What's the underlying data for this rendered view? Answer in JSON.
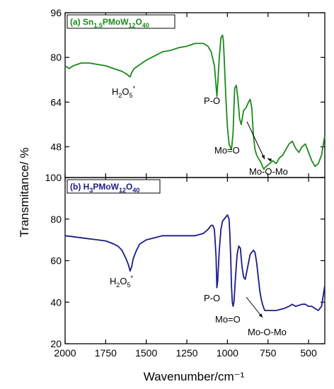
{
  "chart_data": [
    {
      "type": "line",
      "panel": "a",
      "legend_parts": [
        {
          "t": "(a) Sn",
          "sub": false
        },
        {
          "t": "1.5",
          "sub": true
        },
        {
          "t": "PMoW",
          "sub": false
        },
        {
          "t": "12",
          "sub": true
        },
        {
          "t": "O",
          "sub": false
        },
        {
          "t": "40",
          "sub": true
        }
      ],
      "color": "#1a8a1a",
      "legend_placement": "top-left",
      "xlim": [
        2000,
        400
      ],
      "ylim": [
        37,
        96
      ],
      "yticks": [
        "48",
        "64",
        "80",
        "96"
      ],
      "ytick_values": [
        48,
        64,
        80,
        96
      ],
      "series": [
        {
          "x": [
            2000,
            1975,
            1950,
            1900,
            1850,
            1800,
            1750,
            1700,
            1650,
            1620,
            1600,
            1590,
            1575,
            1550,
            1500,
            1450,
            1400,
            1350,
            1300,
            1250,
            1200,
            1150,
            1120,
            1100,
            1080,
            1070,
            1065,
            1060,
            1050,
            1040,
            1030,
            1025,
            1020,
            1010,
            1000,
            990,
            975,
            965,
            960,
            955,
            945,
            935,
            925,
            915,
            900,
            885,
            870,
            860,
            850,
            840,
            830,
            820,
            800,
            790,
            780,
            775,
            770,
            760,
            750,
            740,
            730,
            720,
            700,
            680,
            660,
            640,
            620,
            600,
            580,
            560,
            540,
            520,
            500,
            480,
            460,
            440,
            420,
            400
          ],
          "y": [
            77,
            76,
            77,
            78,
            78,
            77.5,
            77,
            76,
            75,
            74,
            73,
            74.5,
            76,
            77,
            79,
            80.5,
            82,
            82.5,
            83.5,
            84,
            85,
            85,
            84,
            82,
            77,
            70,
            66,
            70,
            80,
            87,
            88,
            86,
            80,
            66,
            55,
            49,
            47,
            53,
            62,
            69,
            70,
            65,
            58,
            56,
            61,
            62,
            64,
            65,
            62,
            52,
            47,
            45,
            43,
            42,
            40.5,
            40,
            40.5,
            41,
            41.5,
            42,
            42.5,
            43,
            42,
            44,
            45,
            47,
            49,
            50,
            47.5,
            46,
            48,
            49,
            46,
            43,
            41,
            42,
            45,
            52
          ]
        }
      ],
      "annotations": [
        {
          "parts": [
            {
              "t": "H",
              "sub": false
            },
            {
              "t": "2",
              "sub": true
            },
            {
              "t": "O",
              "sub": false
            },
            {
              "t": "5",
              "sub": true
            },
            {
              "t": "*",
              "sub": false,
              "sup": true
            }
          ]
        },
        {
          "parts": [
            {
              "t": "P-O",
              "sub": false
            }
          ]
        },
        {
          "parts": [
            {
              "t": "Mo=O",
              "sub": false
            }
          ]
        },
        {
          "parts": [
            {
              "t": "Mo-O-Mo",
              "sub": false
            }
          ]
        }
      ]
    },
    {
      "type": "line",
      "panel": "b",
      "legend_parts": [
        {
          "t": "(b) H",
          "sub": false
        },
        {
          "t": "3",
          "sub": true
        },
        {
          "t": "PMoW",
          "sub": false
        },
        {
          "t": "12",
          "sub": true
        },
        {
          "t": "O",
          "sub": false
        },
        {
          "t": "40",
          "sub": true
        }
      ],
      "color": "#1a1a8c",
      "legend_placement": "top-left",
      "xlim": [
        2000,
        400
      ],
      "ylim": [
        20,
        100
      ],
      "yticks": [
        "20",
        "40",
        "60",
        "80",
        "100"
      ],
      "ytick_values": [
        20,
        40,
        60,
        80,
        100
      ],
      "xticks": [
        "2000",
        "1750",
        "1500",
        "1250",
        "1000",
        "750",
        "500"
      ],
      "xtick_values": [
        2000,
        1750,
        1500,
        1250,
        1000,
        750,
        500
      ],
      "series": [
        {
          "x": [
            2000,
            1950,
            1900,
            1850,
            1800,
            1750,
            1700,
            1675,
            1650,
            1625,
            1610,
            1600,
            1590,
            1580,
            1560,
            1540,
            1500,
            1450,
            1400,
            1350,
            1300,
            1250,
            1200,
            1150,
            1120,
            1100,
            1090,
            1080,
            1070,
            1065,
            1060,
            1050,
            1040,
            1030,
            1020,
            1010,
            1000,
            990,
            985,
            980,
            975,
            970,
            965,
            960,
            950,
            940,
            930,
            920,
            910,
            900,
            890,
            880,
            860,
            840,
            830,
            820,
            810,
            800,
            790,
            780,
            775,
            770,
            760,
            750,
            700,
            650,
            620,
            600,
            580,
            560,
            540,
            520,
            500,
            480,
            460,
            440,
            420,
            400
          ],
          "y": [
            72,
            71.5,
            71,
            70.5,
            70,
            69.5,
            68,
            67,
            65,
            61,
            58,
            55,
            57,
            61,
            65,
            68,
            70,
            71,
            72,
            72,
            72,
            72,
            72,
            73,
            75,
            77,
            77,
            75,
            62,
            47,
            50,
            65,
            75,
            79,
            80,
            81,
            82,
            80,
            73,
            62,
            48,
            40,
            38,
            40,
            52,
            63,
            67,
            66,
            57,
            52,
            51,
            55,
            63,
            65,
            64,
            59,
            52,
            45,
            41,
            38,
            37,
            36,
            36,
            36,
            36,
            37,
            38,
            39,
            38,
            38.5,
            39,
            39,
            38,
            38,
            37,
            36,
            38,
            48
          ]
        }
      ],
      "annotations": [
        {
          "parts": [
            {
              "t": "H",
              "sub": false
            },
            {
              "t": "2",
              "sub": true
            },
            {
              "t": "O",
              "sub": false
            },
            {
              "t": "5",
              "sub": true
            },
            {
              "t": "*",
              "sub": false,
              "sup": true
            }
          ]
        },
        {
          "parts": [
            {
              "t": "P-O",
              "sub": false
            }
          ]
        },
        {
          "parts": [
            {
              "t": "Mo=O",
              "sub": false
            }
          ]
        },
        {
          "parts": [
            {
              "t": "Mo-O-Mo",
              "sub": false
            }
          ]
        }
      ]
    }
  ],
  "ylabel": "Transmitance/ %",
  "xlabel": "Wavenumber/cm⁻¹"
}
